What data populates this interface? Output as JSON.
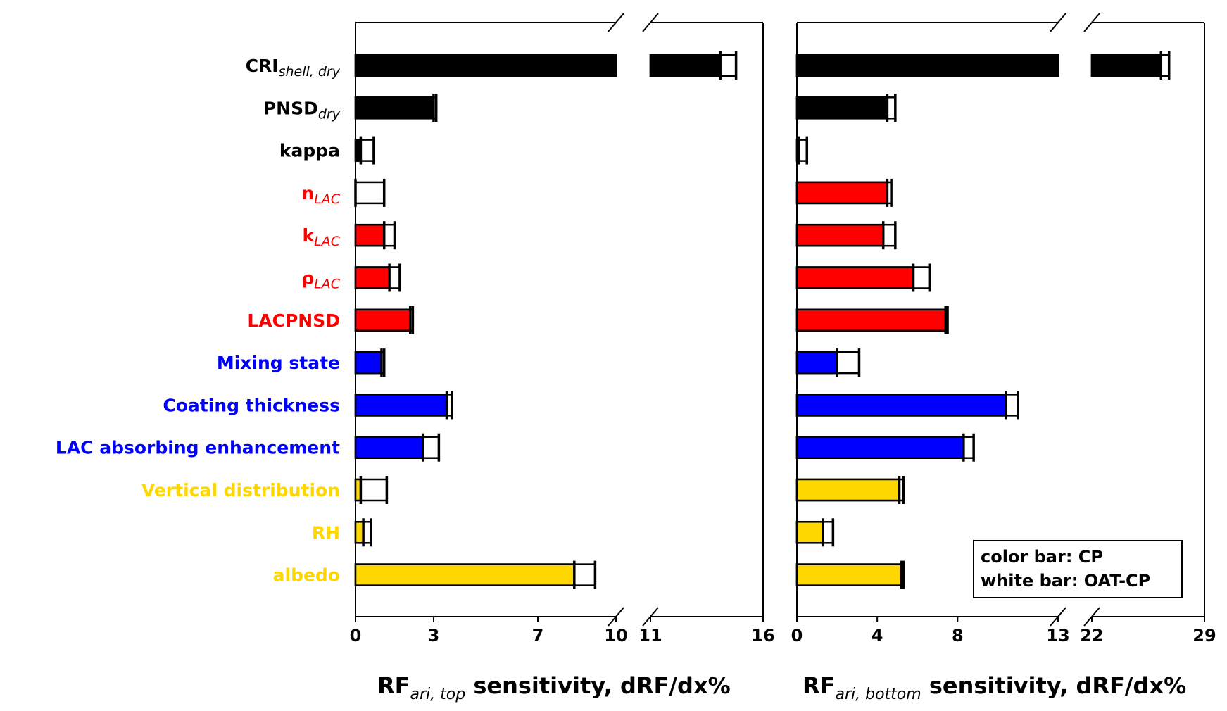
{
  "categories": [
    {
      "main": "CRI",
      "sub": "shell, dry",
      "color": "#000000"
    },
    {
      "main": "PNSD",
      "sub": "dry",
      "color": "#000000"
    },
    {
      "main": "kappa",
      "sub": "",
      "color": "#000000"
    },
    {
      "main": "n",
      "sub": "LAC",
      "color": "#ff0000"
    },
    {
      "main": "k",
      "sub": "LAC",
      "color": "#ff0000"
    },
    {
      "main": "ρ",
      "sub": "LAC",
      "color": "#ff0000"
    },
    {
      "main": "LACPNSD",
      "sub": "",
      "color": "#ff0000"
    },
    {
      "main": "Mixing state",
      "sub": "",
      "color": "#0000ff"
    },
    {
      "main": "Coating thickness",
      "sub": "",
      "color": "#0000ff"
    },
    {
      "main": "LAC absorbing enhancement",
      "sub": "",
      "color": "#0000ff"
    },
    {
      "main": "Vertical distribution",
      "sub": "",
      "color": "#ffd700"
    },
    {
      "main": "RH",
      "sub": "",
      "color": "#ffd700"
    },
    {
      "main": "albedo",
      "sub": "",
      "color": "#ffd700"
    }
  ],
  "legend": {
    "line1": "color bar: CP",
    "line2": "white bar: OAT-CP"
  },
  "chart_data": [
    {
      "type": "bar",
      "orientation": "horizontal",
      "xlabel_main": "RF",
      "xlabel_sub": "ari, top",
      "xlabel_rest": " sensitivity, dRF/dx%",
      "broken_axis": [
        [
          0,
          10
        ],
        [
          11,
          16
        ]
      ],
      "tick_values": [
        0,
        3,
        7,
        10,
        11,
        16
      ],
      "tick_labels": [
        "0",
        "3",
        "7",
        "10",
        "11",
        "16"
      ],
      "series": [
        {
          "name": "CP",
          "values": [
            14.1,
            3.0,
            0.2,
            0.0,
            1.1,
            1.3,
            2.1,
            1.0,
            3.5,
            2.6,
            0.2,
            0.3,
            8.4
          ]
        },
        {
          "name": "OAT-CP",
          "values": [
            14.8,
            3.1,
            0.7,
            1.1,
            1.5,
            1.7,
            2.2,
            1.1,
            3.7,
            3.2,
            1.2,
            0.6,
            9.2
          ]
        }
      ]
    },
    {
      "type": "bar",
      "orientation": "horizontal",
      "xlabel_main": "RF",
      "xlabel_sub": "ari, bottom",
      "xlabel_rest": " sensitivity, dRF/dx%",
      "broken_axis": [
        [
          0,
          13
        ],
        [
          22,
          29
        ]
      ],
      "tick_values": [
        0,
        4,
        8,
        13,
        22,
        29
      ],
      "tick_labels": [
        "0",
        "4",
        "8",
        "13",
        "22",
        "29"
      ],
      "series": [
        {
          "name": "CP",
          "values": [
            26.3,
            4.5,
            0.1,
            4.5,
            4.3,
            5.8,
            7.5,
            2.0,
            10.4,
            8.3,
            5.1,
            1.3,
            5.2
          ]
        },
        {
          "name": "OAT-CP",
          "values": [
            26.8,
            4.9,
            0.5,
            4.7,
            4.9,
            6.6,
            7.4,
            3.1,
            11.0,
            8.8,
            5.3,
            1.8,
            5.3
          ]
        }
      ]
    }
  ]
}
